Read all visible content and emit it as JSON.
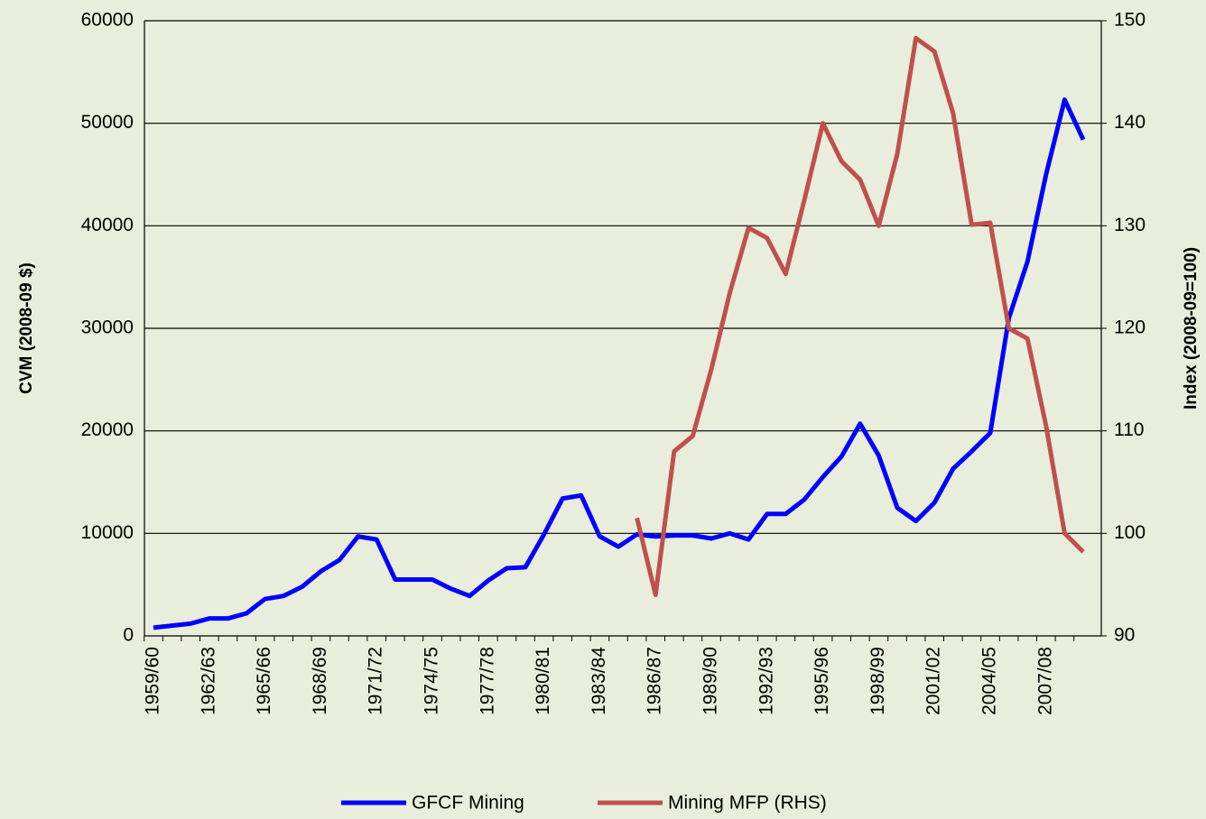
{
  "chart_data": {
    "type": "line",
    "categories": [
      "1959/60",
      null,
      null,
      "1962/63",
      null,
      null,
      "1965/66",
      null,
      null,
      "1968/69",
      null,
      null,
      "1971/72",
      null,
      null,
      "1974/75",
      null,
      null,
      "1977/78",
      null,
      null,
      "1980/81",
      null,
      null,
      "1983/84",
      null,
      null,
      "1986/87",
      null,
      null,
      "1989/90",
      null,
      null,
      "1992/93",
      null,
      null,
      "1995/96",
      null,
      null,
      "1998/99",
      null,
      null,
      "2001/02",
      null,
      null,
      "2004/05",
      null,
      null,
      "2007/08",
      null,
      null
    ],
    "series": [
      {
        "name": "GFCF Mining",
        "color": "#0000ff",
        "axis": "y",
        "values": [
          800,
          1000,
          1200,
          1700,
          1700,
          2200,
          3600,
          3900,
          4800,
          6300,
          7400,
          9700,
          9400,
          5500,
          5500,
          5500,
          4600,
          3900,
          5400,
          6600,
          6700,
          9900,
          13400,
          13700,
          9700,
          8700,
          9900,
          9700,
          9800,
          9800,
          9500,
          10000,
          9400,
          11900,
          11900,
          13300,
          15500,
          17500,
          20700,
          17600,
          12500,
          11200,
          13000,
          16300,
          18000,
          19800,
          31000,
          36500,
          45000,
          52300,
          48400
        ]
      },
      {
        "name": "Mining MFP (RHS)",
        "color": "#c0504d",
        "axis": "y2",
        "values": [
          null,
          null,
          null,
          null,
          null,
          null,
          null,
          null,
          null,
          null,
          null,
          null,
          null,
          null,
          null,
          null,
          null,
          null,
          null,
          null,
          null,
          null,
          null,
          null,
          null,
          null,
          101.5,
          94,
          108,
          109.5,
          116,
          123.5,
          129.8,
          128.8,
          125.3,
          132.5,
          140,
          136.3,
          134.5,
          130,
          137,
          148.3,
          147,
          141,
          130.1,
          130.3,
          120,
          119,
          110.5,
          100,
          98.2
        ]
      }
    ],
    "ylabel": "CVM (2008-09 $)",
    "y2label": "Index (2008-09=100)",
    "ylim": [
      0,
      60000
    ],
    "yticks": [
      0,
      10000,
      20000,
      30000,
      40000,
      50000,
      60000
    ],
    "y2lim": [
      90,
      150
    ],
    "y2ticks": [
      90,
      100,
      110,
      120,
      130,
      140,
      150
    ],
    "grid": true,
    "legend": "bottom"
  }
}
